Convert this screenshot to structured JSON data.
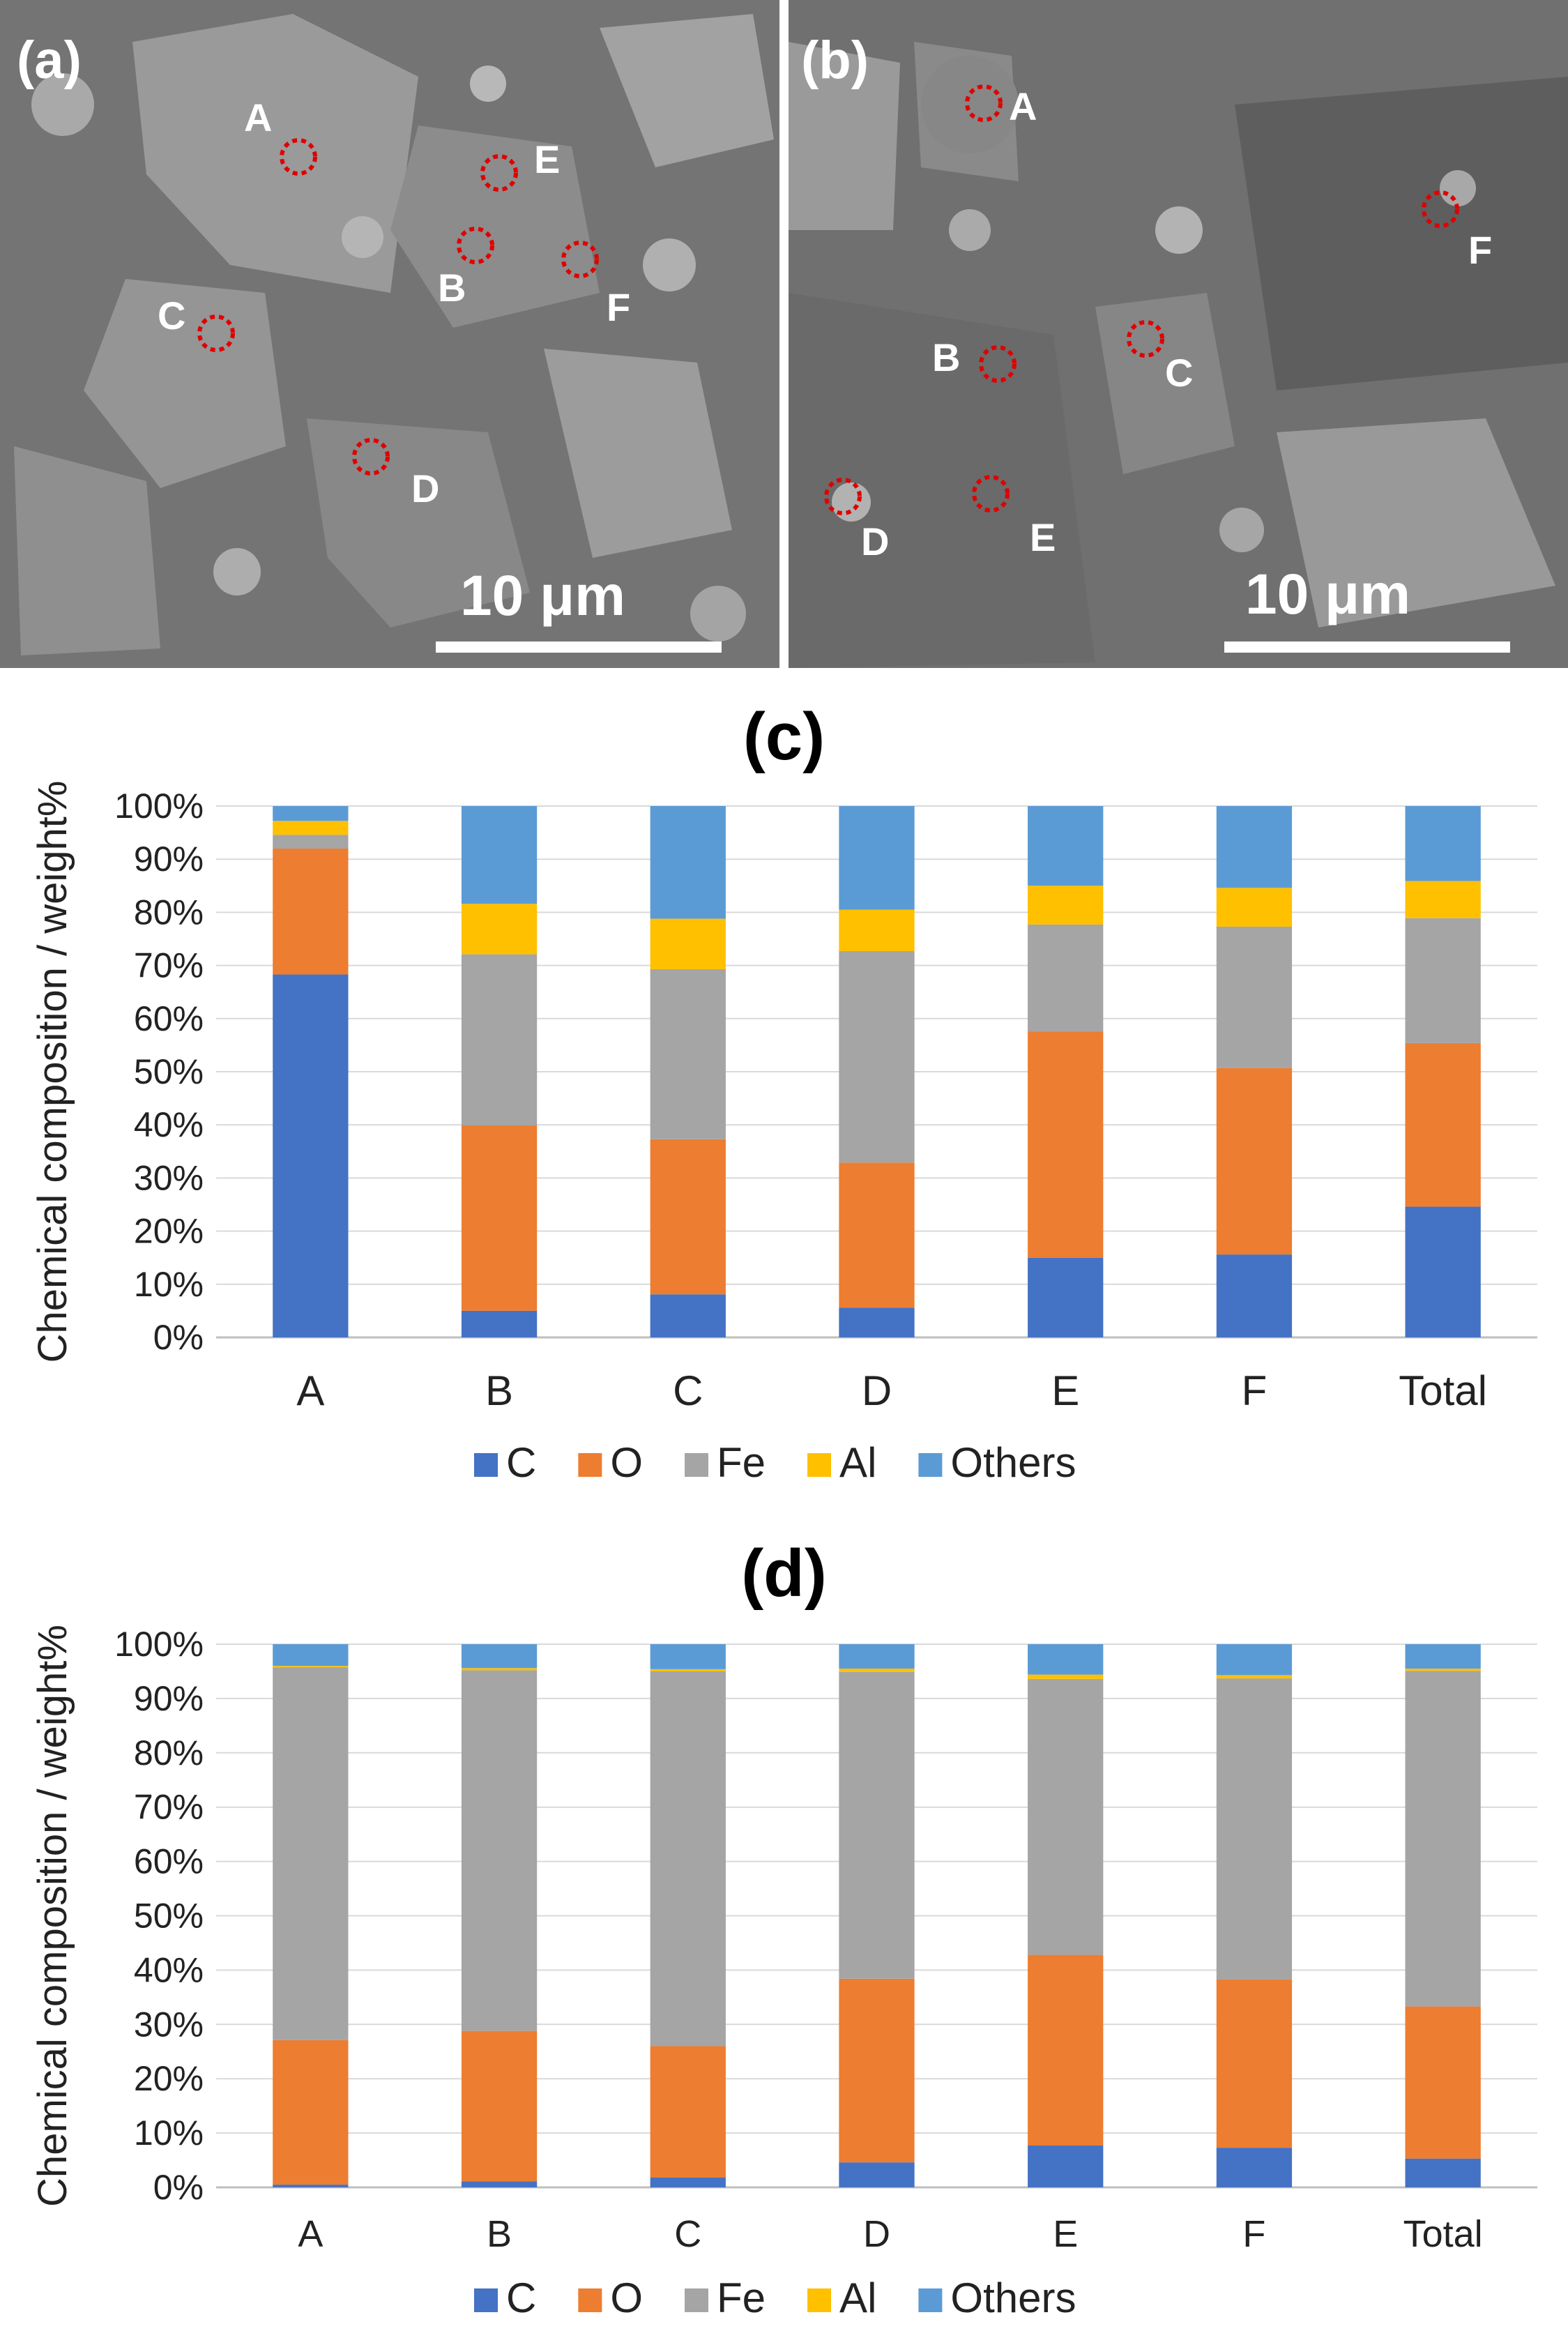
{
  "colors": {
    "C": "#4472C4",
    "O": "#ED7D31",
    "Fe": "#A5A5A5",
    "Al": "#FFC000",
    "Others": "#5B9BD5",
    "marker": "#E00000"
  },
  "sem_panels": [
    {
      "id": "a",
      "tag": "(a)",
      "scale_label": "10 μm",
      "points": [
        "A",
        "B",
        "C",
        "D",
        "E",
        "F"
      ]
    },
    {
      "id": "b",
      "tag": "(b)",
      "scale_label": "10 μm",
      "points": [
        "A",
        "B",
        "C",
        "D",
        "E",
        "F"
      ]
    }
  ],
  "chart_titles": {
    "c": "(c)",
    "d": "(d)"
  },
  "chart_data": [
    {
      "type": "bar",
      "stacked": true,
      "title": "(c)",
      "ylabel": "Chemical composition / weight%",
      "xlabel": "",
      "ylim": [
        0,
        100
      ],
      "yticks": [
        "0%",
        "10%",
        "20%",
        "30%",
        "40%",
        "50%",
        "60%",
        "70%",
        "80%",
        "90%",
        "100%"
      ],
      "grid": true,
      "legend_position": "bottom",
      "categories": [
        "A",
        "B",
        "C",
        "D",
        "E",
        "F",
        "Total"
      ],
      "series": [
        {
          "name": "C",
          "values": [
            68.3,
            5.0,
            8.1,
            5.6,
            15.0,
            15.6,
            24.6
          ]
        },
        {
          "name": "O",
          "values": [
            23.7,
            34.9,
            29.2,
            27.3,
            42.6,
            35.1,
            30.8
          ]
        },
        {
          "name": "Fe",
          "values": [
            2.6,
            32.2,
            32.0,
            39.8,
            20.1,
            26.6,
            23.5
          ]
        },
        {
          "name": "Al",
          "values": [
            2.6,
            9.5,
            9.5,
            7.8,
            7.3,
            7.3,
            7.0
          ]
        },
        {
          "name": "Others",
          "values": [
            2.8,
            18.4,
            21.2,
            19.5,
            15.0,
            15.4,
            14.1
          ]
        }
      ]
    },
    {
      "type": "bar",
      "stacked": true,
      "title": "(d)",
      "ylabel": "Chemical composition / weight%",
      "xlabel": "",
      "ylim": [
        0,
        100
      ],
      "yticks": [
        "0%",
        "10%",
        "20%",
        "30%",
        "40%",
        "50%",
        "60%",
        "70%",
        "80%",
        "90%",
        "100%"
      ],
      "grid": true,
      "legend_position": "bottom",
      "categories": [
        "A",
        "B",
        "C",
        "D",
        "E",
        "F",
        "Total"
      ],
      "series": [
        {
          "name": "C",
          "values": [
            0.5,
            1.1,
            1.8,
            4.6,
            7.7,
            7.3,
            5.3
          ]
        },
        {
          "name": "O",
          "values": [
            26.6,
            27.7,
            24.2,
            33.8,
            35.1,
            31.0,
            28.0
          ]
        },
        {
          "name": "Fe",
          "values": [
            68.6,
            66.4,
            69.0,
            56.5,
            50.8,
            55.4,
            61.8
          ]
        },
        {
          "name": "Al",
          "values": [
            0.3,
            0.4,
            0.4,
            0.6,
            0.8,
            0.6,
            0.4
          ]
        },
        {
          "name": "Others",
          "values": [
            4.0,
            4.4,
            4.6,
            4.5,
            5.6,
            5.7,
            4.5
          ]
        }
      ]
    }
  ]
}
